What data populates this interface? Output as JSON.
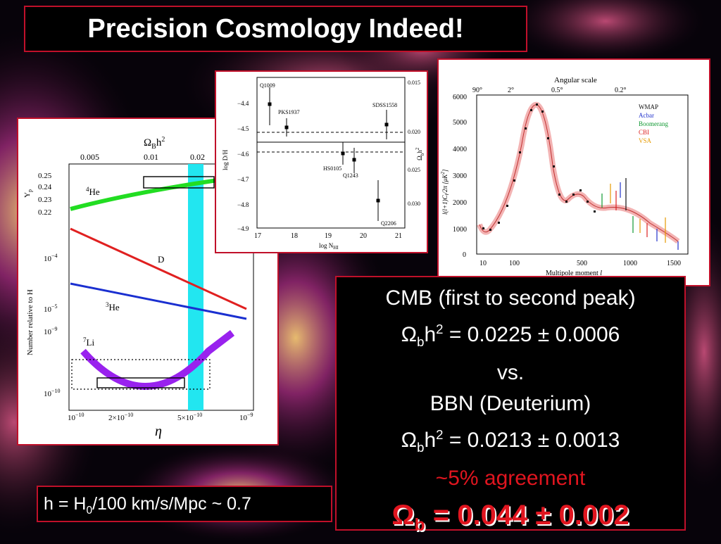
{
  "title": "Precision Cosmology Indeed!",
  "bbn_plot": {
    "top_axis_label": "Ω",
    "top_axis_sub": "B",
    "top_axis_suffix": "h",
    "top_axis_sup": "2",
    "top_ticks": [
      "0.005",
      "0.01",
      "0.02"
    ],
    "y_ticks_top": [
      "0.25",
      "0.24",
      "0.23",
      "0.22"
    ],
    "y_label_top": "Y",
    "y_label_top_sub": "p",
    "y_ticks_low": [
      "10",
      "10",
      "10",
      "10"
    ],
    "y_ticks_low_exp": [
      "−4",
      "−5",
      "−9",
      "−10"
    ],
    "y_label": "Number relative to H",
    "x_ticks": [
      "10",
      "2×10",
      "5×10",
      "10"
    ],
    "x_ticks_exp": [
      "−10",
      "−10",
      "−10",
      "−9"
    ],
    "x_label": "η",
    "curves": [
      {
        "name": "He",
        "sup": "4",
        "color": "#22dd22"
      },
      {
        "name": "D",
        "sup": "",
        "color": "#e02020"
      },
      {
        "name": "He",
        "sup": "3",
        "color": "#1a2fd0"
      },
      {
        "name": "Li",
        "sup": "7",
        "color": "#9922ee"
      }
    ],
    "band_color": "#22e6f0"
  },
  "dh_plot": {
    "y_label": "log D/H",
    "x_label": "log N",
    "x_label_sub": "HI",
    "y2_label": "Ω",
    "y2_label_sub": "b",
    "y2_label_suffix": "h",
    "y2_label_sup": "2",
    "x_ticks": [
      "17",
      "18",
      "19",
      "20",
      "21"
    ],
    "y_ticks": [
      "−4.4",
      "−4.5",
      "−4.6",
      "−4.7",
      "−4.8",
      "−4.9"
    ],
    "y2_ticks": [
      "0.015",
      "0.020",
      "0.025",
      "0.030"
    ],
    "points": [
      "Q1009",
      "PKS1937",
      "SDSS1558",
      "HS0105",
      "Q1243",
      "Q2206"
    ]
  },
  "cmb_plot": {
    "top_label": "Angular scale",
    "top_ticks": [
      "90°",
      "2°",
      "0.5°",
      "0.2°"
    ],
    "y_ticks": [
      "6000",
      "5000",
      "4000",
      "3000",
      "2000",
      "1000",
      "0"
    ],
    "x_ticks": [
      "10",
      "100",
      "500",
      "1000",
      "1500"
    ],
    "x_label": "Multipole moment",
    "x_label_var": "l",
    "y_label": "l(l+1)C",
    "y_label_sub": "l",
    "y_label_suffix": "/2π [μK",
    "y_label_sup": "2",
    "y_label_end": "]",
    "legend": [
      {
        "name": "WMAP",
        "color": "#111111"
      },
      {
        "name": "Acbar",
        "color": "#2233cc"
      },
      {
        "name": "Boomerang",
        "color": "#119933"
      },
      {
        "name": "CBI",
        "color": "#dd2222"
      },
      {
        "name": "VSA",
        "color": "#e69a00"
      }
    ]
  },
  "results": {
    "cmb_line": "CMB (first to second peak)",
    "omega": "Ω",
    "sub_b": "b",
    "h": "h",
    "sup_2": "2",
    "cmb_value": " = 0.0225 ± 0.0006",
    "vs": "vs.",
    "bbn_line": "BBN (Deuterium)",
    "bbn_value": " = 0.0213 ± 0.0013",
    "agreement": "~5% agreement",
    "final_omega": "Ω",
    "final_sub": "b",
    "final_value": " = 0.044 ± 0.002"
  },
  "hubble": {
    "prefix": "h = H",
    "sub": "0",
    "suffix": "/100 km/s/Mpc ~ 0.7"
  }
}
